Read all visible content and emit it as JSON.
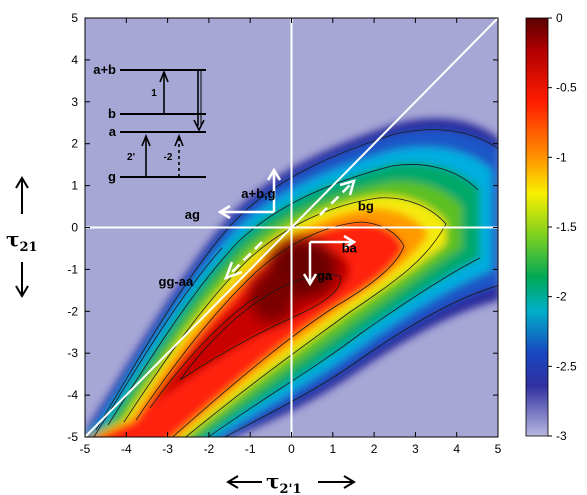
{
  "chart_data": {
    "type": "heatmap",
    "x_ticks": [
      -5,
      -4,
      -3,
      -2,
      -1,
      0,
      1,
      2,
      3,
      4,
      5
    ],
    "y_ticks": [
      -5,
      -4,
      -3,
      -2,
      -1,
      0,
      1,
      2,
      3,
      4,
      5
    ],
    "xlim": [
      -5,
      5
    ],
    "ylim": [
      -5,
      5
    ],
    "xlabel": "τ2'1",
    "xlabel_main": "τ",
    "xlabel_sub": "2'1",
    "ylabel": "τ21",
    "ylabel_main": "τ",
    "ylabel_sub": "21",
    "colorbar": {
      "range": [
        -3,
        0
      ],
      "ticks": [
        0,
        -0.5,
        -1,
        -1.5,
        -2,
        -2.5,
        -3
      ]
    },
    "background_color": "#a7a7d6",
    "peak": {
      "x": 0.3,
      "y": -0.9,
      "value": 0
    },
    "annotations": [
      {
        "label": "a+b,g",
        "x": -0.8,
        "y": 0.7
      },
      {
        "label": "ag",
        "x": -2.4,
        "y": 0.2
      },
      {
        "label": "bg",
        "x": 1.8,
        "y": 0.4
      },
      {
        "label": "gg-aa",
        "x": -2.8,
        "y": -1.4
      },
      {
        "label": "ba",
        "x": 1.4,
        "y": -0.6
      },
      {
        "label": "ga",
        "x": 0.8,
        "y": -1.25
      }
    ],
    "energy_levels": {
      "levels": [
        "a+b",
        "b",
        "a",
        "g"
      ],
      "transitions": [
        "1",
        "2'",
        "-2"
      ]
    }
  }
}
